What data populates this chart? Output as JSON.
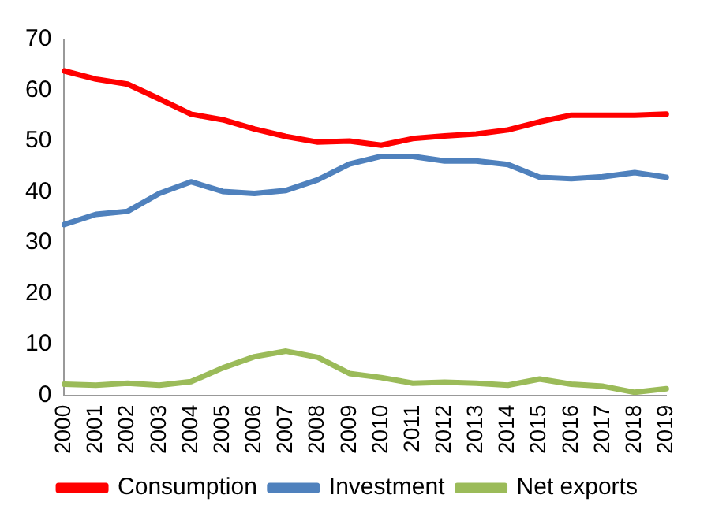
{
  "chart_data": {
    "type": "line",
    "categories": [
      "2000",
      "2001",
      "2002",
      "2003",
      "2004",
      "2005",
      "2006",
      "2007",
      "2008",
      "2009",
      "2010",
      "2011",
      "2012",
      "2013",
      "2014",
      "2015",
      "2016",
      "2017",
      "2018",
      "2019"
    ],
    "series": [
      {
        "name": "Consumption",
        "color": "#ff0000",
        "values": [
          63.8,
          62.2,
          61.2,
          58.3,
          55.3,
          54.2,
          52.4,
          50.9,
          49.8,
          50.0,
          49.2,
          50.5,
          51.0,
          51.4,
          52.2,
          53.8,
          55.1,
          55.1,
          55.1,
          55.3
        ]
      },
      {
        "name": "Investment",
        "color": "#4f81bd",
        "values": [
          33.6,
          35.6,
          36.2,
          39.7,
          42.0,
          40.1,
          39.7,
          40.3,
          42.4,
          45.5,
          47.0,
          47.0,
          46.1,
          46.1,
          45.4,
          42.9,
          42.6,
          43.0,
          43.8,
          42.9
        ]
      },
      {
        "name": "Net exports",
        "color": "#9bbb59",
        "values": [
          2.2,
          2.0,
          2.4,
          2.0,
          2.7,
          5.4,
          7.6,
          8.7,
          7.5,
          4.3,
          3.5,
          2.4,
          2.6,
          2.4,
          2.0,
          3.2,
          2.2,
          1.8,
          0.6,
          1.3
        ]
      }
    ],
    "ylim": [
      0,
      70
    ],
    "yticks": [
      0,
      10,
      20,
      30,
      40,
      50,
      60,
      70
    ],
    "grid": false,
    "legend": "bottom",
    "marker": "none",
    "line_style": "solid"
  }
}
